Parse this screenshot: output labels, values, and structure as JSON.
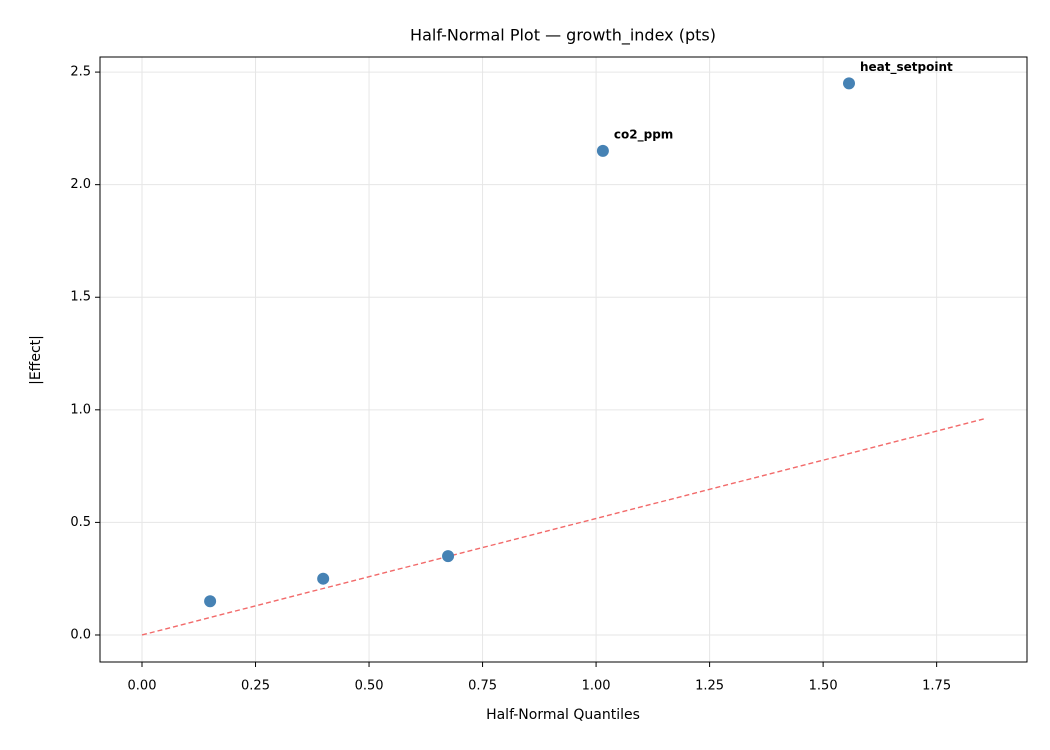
{
  "chart_data": {
    "type": "scatter",
    "title": "Half-Normal Plot — growth_index (pts)",
    "x_label": "Half-Normal Quantiles",
    "y_label": "|Effect|",
    "x": [
      0.15,
      0.399,
      0.674,
      1.015,
      1.557
    ],
    "values": [
      0.15,
      0.25,
      0.35,
      2.15,
      2.45
    ],
    "color": "#4682b4",
    "point_labels": [
      null,
      null,
      null,
      "co2_ppm",
      "heat_setpoint"
    ],
    "point_label_color": "#ff0000",
    "reference_line": {
      "x": [
        0,
        1.855
      ],
      "y": [
        0,
        0.96
      ],
      "color": "#f26a6a",
      "dashed": true
    },
    "xlim": [
      -0.0925,
      1.949
    ],
    "ylim": [
      -0.12,
      2.567
    ],
    "xticks": [
      {
        "value": 0,
        "label": "0.00"
      },
      0.25,
      {
        "value": 0.5,
        "label": "0.50"
      },
      0.75,
      {
        "value": 1,
        "label": "1.00"
      },
      1.25,
      {
        "value": 1.5,
        "label": "1.50"
      },
      1.75
    ],
    "yticks": [
      {
        "value": 0,
        "label": "0.0"
      },
      0.5,
      {
        "value": 1,
        "label": "1.0"
      },
      1.5,
      {
        "value": 2,
        "label": "2.0"
      },
      2.5
    ],
    "grid": true
  }
}
